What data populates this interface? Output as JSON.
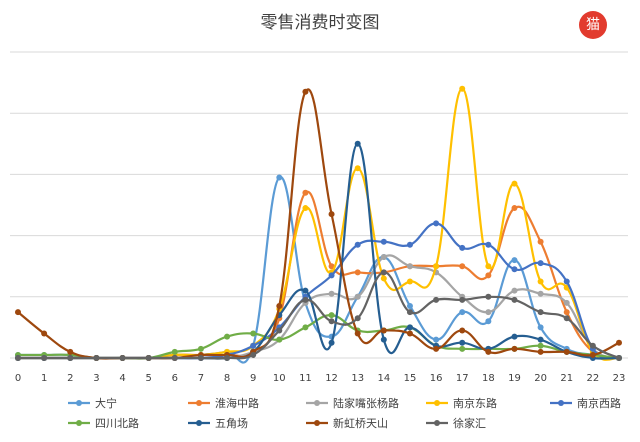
{
  "chart_data": {
    "type": "line",
    "title": "零售消费时变图",
    "xlabel": "",
    "ylabel": "",
    "x": [
      0,
      1,
      2,
      3,
      4,
      5,
      6,
      7,
      8,
      9,
      10,
      11,
      12,
      13,
      14,
      15,
      16,
      17,
      18,
      19,
      20,
      21,
      22,
      23
    ],
    "ylim": [
      0,
      100
    ],
    "y_ticks_labeled": false,
    "grid": "horizontal",
    "legend_position": "bottom",
    "series": [
      {
        "name": "大宁",
        "color": "#5b9bd5",
        "values": [
          1,
          1,
          1,
          0,
          0,
          0,
          1,
          1,
          2,
          4,
          59,
          18,
          7,
          20,
          33,
          17,
          6,
          15,
          12,
          32,
          10,
          3,
          1,
          0
        ]
      },
      {
        "name": "淮海中路",
        "color": "#ed7d31",
        "values": [
          0,
          0,
          0,
          0,
          0,
          0,
          1,
          1,
          1,
          2,
          13,
          54,
          30,
          28,
          28,
          30,
          30,
          30,
          27,
          49,
          38,
          15,
          2,
          0
        ]
      },
      {
        "name": "陆家嘴张杨路",
        "color": "#a5a5a5",
        "values": [
          0,
          0,
          0,
          0,
          0,
          0,
          0,
          0,
          0,
          2,
          6,
          18,
          21,
          20,
          33,
          30,
          28,
          20,
          15,
          22,
          21,
          18,
          3,
          0
        ]
      },
      {
        "name": "南京东路",
        "color": "#ffc000",
        "values": [
          0,
          0,
          0,
          0,
          0,
          0,
          1,
          1,
          2,
          4,
          16,
          49,
          28,
          62,
          26,
          25,
          30,
          88,
          30,
          57,
          25,
          23,
          2,
          0
        ]
      },
      {
        "name": "南京西路",
        "color": "#4472c4",
        "values": [
          0,
          0,
          0,
          0,
          0,
          0,
          0,
          0,
          1,
          4,
          10,
          20,
          27,
          37,
          38,
          37,
          44,
          36,
          37,
          29,
          31,
          25,
          3,
          0
        ]
      },
      {
        "name": "四川北路",
        "color": "#70ad47",
        "values": [
          1,
          1,
          1,
          0,
          0,
          0,
          2,
          3,
          7,
          8,
          6,
          10,
          14,
          9,
          9,
          10,
          4,
          3,
          3,
          3,
          4,
          2,
          1,
          0
        ]
      },
      {
        "name": "五角场",
        "color": "#255e91",
        "values": [
          0,
          0,
          0,
          0,
          0,
          0,
          0,
          0,
          0,
          2,
          14,
          22,
          5,
          70,
          6,
          10,
          4,
          5,
          3,
          7,
          6,
          2,
          0,
          0
        ]
      },
      {
        "name": "新虹桥天山",
        "color": "#9e480e",
        "values": [
          15,
          8,
          2,
          0,
          0,
          0,
          0,
          1,
          1,
          2,
          17,
          87,
          47,
          8,
          9,
          8,
          3,
          9,
          2,
          3,
          2,
          2,
          1,
          5
        ]
      },
      {
        "name": "徐家汇",
        "color": "#636363",
        "values": [
          0,
          0,
          0,
          0,
          0,
          0,
          0,
          0,
          0,
          1,
          9,
          19,
          12,
          13,
          28,
          15,
          19,
          19,
          20,
          19,
          15,
          13,
          4,
          0
        ]
      }
    ]
  },
  "logo": {
    "text": "猫"
  }
}
